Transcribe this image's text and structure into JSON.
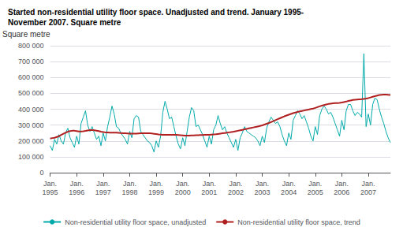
{
  "chart_data": {
    "type": "line",
    "title": "Started non-residential utility floor space. Unadjusted and trend. January 1995-\nNovember 2007. Square metre",
    "ylabel": "Square metre",
    "categories": [
      "Jan.\n1995",
      null,
      null,
      null,
      null,
      null,
      null,
      null,
      null,
      null,
      null,
      null,
      "Jan.\n1996",
      null,
      null,
      null,
      null,
      null,
      null,
      null,
      null,
      null,
      null,
      null,
      "Jan.\n1997",
      null,
      null,
      null,
      null,
      null,
      null,
      null,
      null,
      null,
      null,
      null,
      "Jan.\n1998",
      null,
      null,
      null,
      null,
      null,
      null,
      null,
      null,
      null,
      null,
      null,
      "Jan.\n1999",
      null,
      null,
      null,
      null,
      null,
      null,
      null,
      null,
      null,
      null,
      null,
      "Jan.\n2000",
      null,
      null,
      null,
      null,
      null,
      null,
      null,
      null,
      null,
      null,
      null,
      "Jan.\n2001",
      null,
      null,
      null,
      null,
      null,
      null,
      null,
      null,
      null,
      null,
      null,
      "Jan.\n2002",
      null,
      null,
      null,
      null,
      null,
      null,
      null,
      null,
      null,
      null,
      null,
      "Jan.\n2003",
      null,
      null,
      null,
      null,
      null,
      null,
      null,
      null,
      null,
      null,
      null,
      "Jan.\n2004",
      null,
      null,
      null,
      null,
      null,
      null,
      null,
      null,
      null,
      null,
      null,
      "Jan.\n2005",
      null,
      null,
      null,
      null,
      null,
      null,
      null,
      null,
      null,
      null,
      null,
      "Jan.\n2006",
      null,
      null,
      null,
      null,
      null,
      null,
      null,
      null,
      null,
      null,
      null,
      "Jan.\n2007",
      null,
      null,
      null,
      null,
      null,
      null,
      null,
      null,
      null,
      null
    ],
    "series": [
      {
        "name": "Non-residential utility floor space, unadjusted",
        "color": "#00AAAA",
        "values": [
          170000,
          140000,
          210000,
          180000,
          240000,
          200000,
          180000,
          250000,
          280000,
          220000,
          190000,
          160000,
          230000,
          180000,
          310000,
          350000,
          390000,
          300000,
          260000,
          290000,
          250000,
          210000,
          230000,
          170000,
          250000,
          200000,
          290000,
          350000,
          420000,
          370000,
          290000,
          280000,
          250000,
          230000,
          210000,
          180000,
          260000,
          220000,
          340000,
          360000,
          350000,
          260000,
          240000,
          220000,
          200000,
          190000,
          170000,
          130000,
          200000,
          160000,
          230000,
          380000,
          450000,
          400000,
          340000,
          350000,
          290000,
          230000,
          180000,
          150000,
          220000,
          170000,
          260000,
          350000,
          410000,
          390000,
          290000,
          300000,
          270000,
          240000,
          200000,
          160000,
          230000,
          180000,
          270000,
          300000,
          360000,
          310000,
          270000,
          290000,
          250000,
          220000,
          190000,
          160000,
          210000,
          140000,
          220000,
          250000,
          290000,
          260000,
          250000,
          240000,
          230000,
          220000,
          200000,
          170000,
          230000,
          190000,
          280000,
          320000,
          350000,
          330000,
          310000,
          320000,
          290000,
          240000,
          200000,
          170000,
          250000,
          210000,
          330000,
          360000,
          390000,
          370000,
          340000,
          360000,
          320000,
          280000,
          230000,
          200000,
          290000,
          240000,
          360000,
          400000,
          420000,
          400000,
          370000,
          380000,
          350000,
          310000,
          270000,
          230000,
          330000,
          270000,
          390000,
          430000,
          430000,
          390000,
          360000,
          380000,
          370000,
          350000,
          750000,
          290000,
          370000,
          300000,
          430000,
          470000,
          460000,
          400000,
          350000,
          310000,
          260000,
          220000,
          190000
        ]
      },
      {
        "name": "Non-residential utility floor space, trend",
        "color": "#B02020",
        "values": [
          215000,
          218000,
          220000,
          225000,
          230000,
          238000,
          245000,
          252000,
          258000,
          262000,
          264000,
          264000,
          262000,
          260000,
          260000,
          261000,
          263000,
          266000,
          268000,
          268000,
          267000,
          265000,
          262000,
          258000,
          256000,
          254000,
          253000,
          252000,
          252000,
          252000,
          252000,
          251000,
          250000,
          249000,
          248000,
          247000,
          246000,
          246000,
          246000,
          246000,
          247000,
          248000,
          249000,
          249000,
          249000,
          248000,
          247000,
          245000,
          243000,
          241000,
          240000,
          239000,
          238000,
          238000,
          238000,
          238000,
          238000,
          238000,
          237000,
          236000,
          235000,
          234000,
          234000,
          234000,
          235000,
          235000,
          236000,
          236000,
          237000,
          237000,
          238000,
          238000,
          239000,
          240000,
          241000,
          242000,
          244000,
          246000,
          248000,
          250000,
          252000,
          254000,
          256000,
          258000,
          261000,
          264000,
          267000,
          270000,
          273000,
          276000,
          279000,
          282000,
          285000,
          288000,
          291000,
          294000,
          298000,
          303000,
          308000,
          313000,
          319000,
          325000,
          331000,
          337000,
          343000,
          349000,
          355000,
          360000,
          365000,
          370000,
          375000,
          379000,
          383000,
          386000,
          389000,
          392000,
          395000,
          398000,
          401000,
          404000,
          408000,
          413000,
          418000,
          422000,
          426000,
          430000,
          433000,
          435000,
          437000,
          438000,
          439000,
          440000,
          442000,
          445000,
          448000,
          452000,
          455000,
          458000,
          460000,
          461000,
          462000,
          463000,
          465000,
          467000,
          470000,
          474000,
          478000,
          482000,
          486000,
          489000,
          491000,
          492000,
          492000,
          491000,
          489000
        ]
      }
    ],
    "ylim": [
      0,
      800000
    ],
    "yticks": [
      0,
      {
        "value": 100000,
        "label": "100 000"
      },
      {
        "value": 200000,
        "label": "200 000"
      },
      {
        "value": 300000,
        "label": "300 000"
      },
      {
        "value": 400000,
        "label": "400 000"
      },
      {
        "value": 500000,
        "label": "500 000"
      },
      {
        "value": 600000,
        "label": "600 000"
      },
      {
        "value": 700000,
        "label": "700 000"
      },
      {
        "value": 800000,
        "label": "800 000"
      }
    ],
    "grid": true,
    "legend": "bottom"
  }
}
